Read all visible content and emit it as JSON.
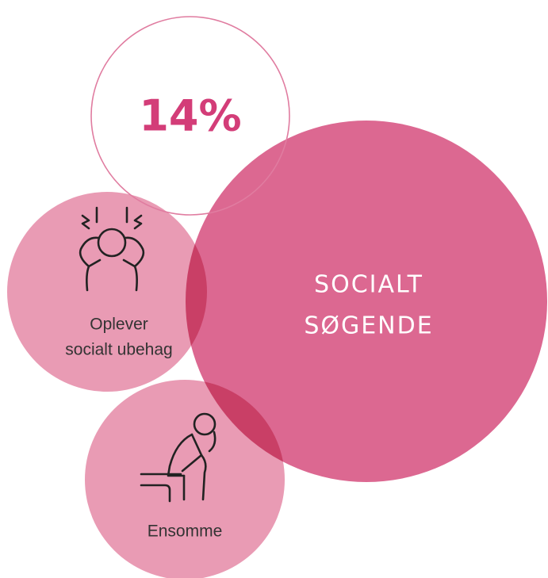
{
  "stat": {
    "value": "14%"
  },
  "main": {
    "label": [
      "SOCIALT",
      "SØGENDE"
    ]
  },
  "groups": [
    {
      "label": [
        "Oplever",
        "socialt ubehag"
      ]
    },
    {
      "label": [
        "Ensomme"
      ]
    }
  ]
}
